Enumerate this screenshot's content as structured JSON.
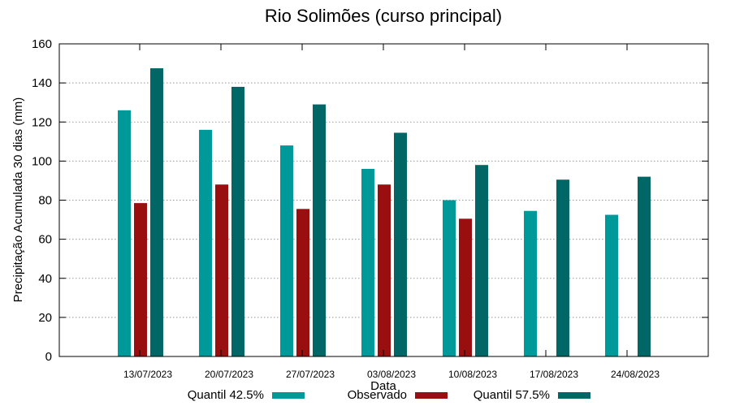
{
  "chart_data": {
    "type": "bar",
    "title": "Rio Solimões (curso principal)",
    "xlabel": "Data",
    "ylabel": "Precipitação Acumulada 30 dias (mm)",
    "ylim": [
      0,
      160
    ],
    "yticks": [
      0,
      20,
      40,
      60,
      80,
      100,
      120,
      140,
      160
    ],
    "grid": true,
    "legend_position": "bottom",
    "categories": [
      "13/07/2023",
      "20/07/2023",
      "27/07/2023",
      "03/08/2023",
      "10/08/2023",
      "17/08/2023",
      "24/08/2023"
    ],
    "series": [
      {
        "name": "Quantil 42.5%",
        "color": "#009999",
        "values": [
          126,
          116,
          108,
          96,
          80,
          74.5,
          72.5
        ]
      },
      {
        "name": "Observado",
        "color": "#990f0f",
        "values": [
          78.5,
          88,
          75.5,
          88,
          70.5,
          null,
          null
        ]
      },
      {
        "name": "Quantil 57.5%",
        "color": "#006666",
        "values": [
          147.5,
          138,
          129,
          114.5,
          98,
          90.5,
          92
        ]
      }
    ]
  }
}
